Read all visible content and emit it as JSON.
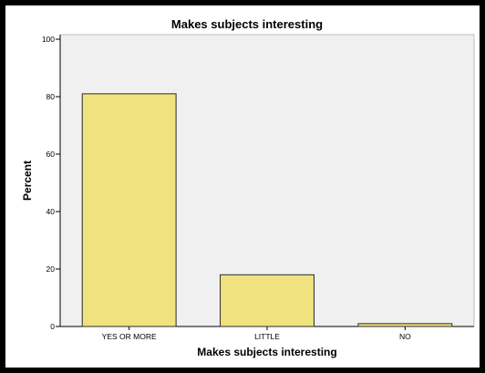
{
  "chart_data": {
    "type": "bar",
    "title": "Makes subjects interesting",
    "xlabel": "Makes subjects interesting",
    "ylabel": "Percent",
    "categories": [
      "YES OR MORE",
      "LITTLE",
      "NO"
    ],
    "values": [
      81,
      18,
      1
    ],
    "ylim": [
      0,
      100
    ],
    "yticks": [
      0,
      20,
      40,
      60,
      80,
      100
    ],
    "ytick_labels": [
      "0",
      "20",
      "40",
      "60",
      "80",
      "100"
    ],
    "grid": false,
    "colors": {
      "bar_fill": "#f0e27e",
      "bar_stroke": "#2b2b2b",
      "plot_background": "#f0f0f0"
    }
  }
}
